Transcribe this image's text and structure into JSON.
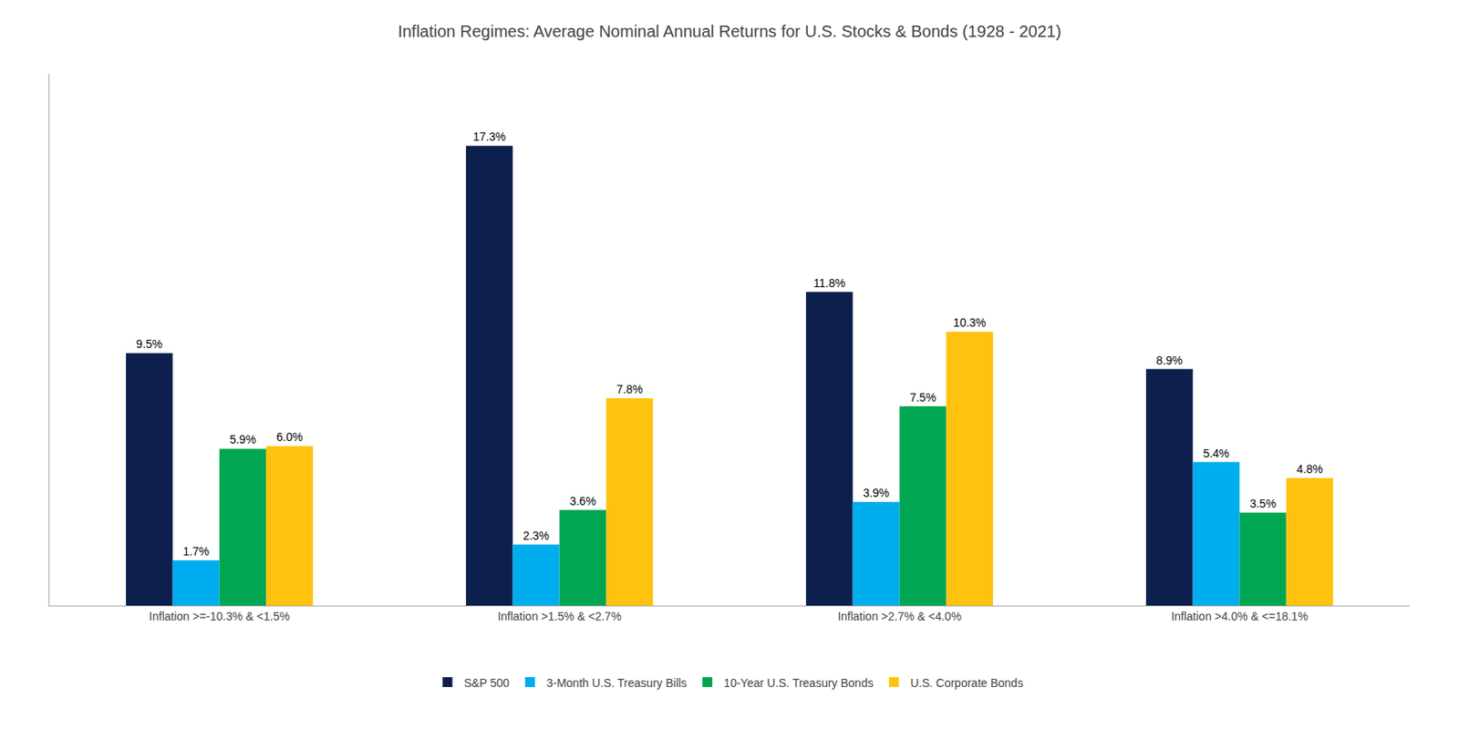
{
  "chart_data": {
    "type": "bar",
    "title": "Inflation Regimes: Average Nominal Annual Returns for U.S. Stocks & Bonds (1928 - 2021)",
    "categories": [
      "Inflation >=-10.3% & <1.5%",
      "Inflation >1.5% & <2.7%",
      "Inflation >2.7% & <4.0%",
      "Inflation >4.0% & <=18.1%"
    ],
    "series": [
      {
        "name": "S&P 500",
        "color": "#0d1f4c",
        "values": [
          9.5,
          17.3,
          11.8,
          8.9
        ],
        "value_labels": [
          "9.5%",
          "17.3%",
          "11.8%",
          "8.9%"
        ]
      },
      {
        "name": "3-Month U.S. Treasury Bills",
        "color": "#00aeef",
        "values": [
          1.7,
          2.3,
          3.9,
          5.4
        ],
        "value_labels": [
          "1.7%",
          "2.3%",
          "3.9%",
          "5.4%"
        ]
      },
      {
        "name": "10-Year U.S. Treasury Bonds",
        "color": "#00a651",
        "values": [
          5.9,
          3.6,
          7.5,
          3.5
        ],
        "value_labels": [
          "5.9%",
          "3.6%",
          "7.5%",
          "3.5%"
        ]
      },
      {
        "name": "U.S. Corporate Bonds",
        "color": "#ffc20e",
        "values": [
          6.0,
          7.8,
          10.3,
          4.8
        ],
        "value_labels": [
          "6.0%",
          "7.8%",
          "10.3%",
          "4.8%"
        ]
      }
    ],
    "ylim": [
      0,
      20
    ],
    "grid": false,
    "legend": "bottom",
    "data_labels": true,
    "tick_labels": "x"
  }
}
